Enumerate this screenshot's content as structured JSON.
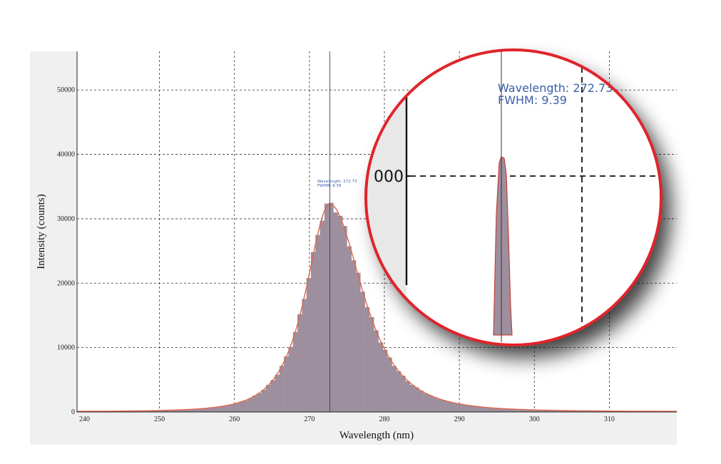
{
  "chart_data": {
    "type": "bar",
    "xlabel": "Wavelength (nm)",
    "ylabel": "Intensity (counts)",
    "xlim": [
      239,
      319
    ],
    "ylim": [
      0,
      56000
    ],
    "x_ticks": [
      240,
      250,
      260,
      270,
      280,
      290,
      300,
      310
    ],
    "y_ticks": [
      0,
      10000,
      20000,
      30000,
      40000,
      50000
    ],
    "grid": true,
    "bar_color": "#9d8f9d",
    "fit_color": "#e0664a",
    "peak": {
      "center": 272.73,
      "fwhm": 9.39,
      "height": 32200
    },
    "bin_width": 0.6,
    "cursor": {
      "wavelength_label": "Wavelength: 272.73",
      "fwhm_label": "FWHM: 9.39",
      "x": 272.73
    },
    "zoom_inset": {
      "wavelength_label": "Wavelength: 272.73",
      "fwhm_label": "FWHM: 9.39",
      "tick_label": "000"
    }
  }
}
